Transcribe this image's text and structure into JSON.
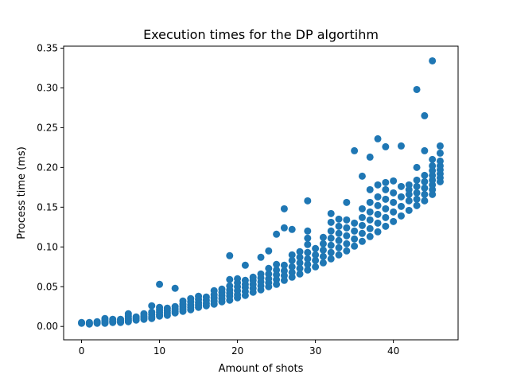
{
  "chart_data": {
    "type": "scatter",
    "title": "Execution times for the DP algortihm",
    "xlabel": "Amount of shots",
    "ylabel": "Process time (ms)",
    "xlim": [
      -2.3,
      48.3
    ],
    "ylim": [
      -0.0168,
      0.3525
    ],
    "xticks": [
      0,
      10,
      20,
      30,
      40
    ],
    "xtick_labels": [
      "0",
      "10",
      "20",
      "30",
      "40"
    ],
    "yticks": [
      0.0,
      0.05,
      0.1,
      0.15,
      0.2,
      0.25,
      0.3,
      0.35
    ],
    "ytick_labels": [
      "0.00",
      "0.05",
      "0.10",
      "0.15",
      "0.20",
      "0.25",
      "0.30",
      "0.35"
    ],
    "grid": false,
    "marker_color": "#1f77b4",
    "points": [
      [
        0,
        0.004
      ],
      [
        0,
        0.005
      ],
      [
        1,
        0.003
      ],
      [
        1,
        0.004
      ],
      [
        1,
        0.005
      ],
      [
        2,
        0.004
      ],
      [
        2,
        0.005
      ],
      [
        2,
        0.006
      ],
      [
        3,
        0.004
      ],
      [
        3,
        0.005
      ],
      [
        3,
        0.006
      ],
      [
        3,
        0.008
      ],
      [
        3,
        0.01
      ],
      [
        4,
        0.005
      ],
      [
        4,
        0.006
      ],
      [
        4,
        0.007
      ],
      [
        4,
        0.009
      ],
      [
        5,
        0.005
      ],
      [
        5,
        0.006
      ],
      [
        5,
        0.008
      ],
      [
        5,
        0.009
      ],
      [
        6,
        0.006
      ],
      [
        6,
        0.008
      ],
      [
        6,
        0.01
      ],
      [
        6,
        0.013
      ],
      [
        6,
        0.016
      ],
      [
        7,
        0.008
      ],
      [
        7,
        0.01
      ],
      [
        7,
        0.012
      ],
      [
        8,
        0.009
      ],
      [
        8,
        0.011
      ],
      [
        8,
        0.013
      ],
      [
        8,
        0.016
      ],
      [
        9,
        0.01
      ],
      [
        9,
        0.012
      ],
      [
        9,
        0.015
      ],
      [
        9,
        0.018
      ],
      [
        9,
        0.026
      ],
      [
        10,
        0.013
      ],
      [
        10,
        0.015
      ],
      [
        10,
        0.018
      ],
      [
        10,
        0.021
      ],
      [
        10,
        0.024
      ],
      [
        10,
        0.053
      ],
      [
        11,
        0.014
      ],
      [
        11,
        0.017
      ],
      [
        11,
        0.02
      ],
      [
        11,
        0.023
      ],
      [
        12,
        0.017
      ],
      [
        12,
        0.019
      ],
      [
        12,
        0.022
      ],
      [
        12,
        0.025
      ],
      [
        12,
        0.048
      ],
      [
        13,
        0.019
      ],
      [
        13,
        0.022
      ],
      [
        13,
        0.025
      ],
      [
        13,
        0.028
      ],
      [
        13,
        0.032
      ],
      [
        14,
        0.021
      ],
      [
        14,
        0.024
      ],
      [
        14,
        0.027
      ],
      [
        14,
        0.031
      ],
      [
        14,
        0.035
      ],
      [
        15,
        0.024
      ],
      [
        15,
        0.027
      ],
      [
        15,
        0.03
      ],
      [
        15,
        0.034
      ],
      [
        15,
        0.038
      ],
      [
        16,
        0.026
      ],
      [
        16,
        0.029
      ],
      [
        16,
        0.033
      ],
      [
        16,
        0.037
      ],
      [
        17,
        0.028
      ],
      [
        17,
        0.032
      ],
      [
        17,
        0.036
      ],
      [
        17,
        0.04
      ],
      [
        17,
        0.045
      ],
      [
        18,
        0.031
      ],
      [
        18,
        0.035
      ],
      [
        18,
        0.039
      ],
      [
        18,
        0.043
      ],
      [
        18,
        0.047
      ],
      [
        19,
        0.033
      ],
      [
        19,
        0.038
      ],
      [
        19,
        0.042
      ],
      [
        19,
        0.046
      ],
      [
        19,
        0.051
      ],
      [
        19,
        0.059
      ],
      [
        19,
        0.089
      ],
      [
        20,
        0.036
      ],
      [
        20,
        0.04
      ],
      [
        20,
        0.045
      ],
      [
        20,
        0.05
      ],
      [
        20,
        0.055
      ],
      [
        20,
        0.06
      ],
      [
        21,
        0.039
      ],
      [
        21,
        0.044
      ],
      [
        21,
        0.049
      ],
      [
        21,
        0.053
      ],
      [
        21,
        0.058
      ],
      [
        21,
        0.077
      ],
      [
        22,
        0.043
      ],
      [
        22,
        0.048
      ],
      [
        22,
        0.053
      ],
      [
        22,
        0.058
      ],
      [
        22,
        0.062
      ],
      [
        23,
        0.046
      ],
      [
        23,
        0.051
      ],
      [
        23,
        0.056
      ],
      [
        23,
        0.061
      ],
      [
        23,
        0.066
      ],
      [
        23,
        0.087
      ],
      [
        24,
        0.05
      ],
      [
        24,
        0.055
      ],
      [
        24,
        0.06
      ],
      [
        24,
        0.066
      ],
      [
        24,
        0.073
      ],
      [
        24,
        0.095
      ],
      [
        25,
        0.053
      ],
      [
        25,
        0.059
      ],
      [
        25,
        0.065
      ],
      [
        25,
        0.071
      ],
      [
        25,
        0.078
      ],
      [
        25,
        0.116
      ],
      [
        26,
        0.058
      ],
      [
        26,
        0.064
      ],
      [
        26,
        0.07
      ],
      [
        26,
        0.077
      ],
      [
        26,
        0.124
      ],
      [
        26,
        0.148
      ],
      [
        27,
        0.062
      ],
      [
        27,
        0.068
      ],
      [
        27,
        0.075
      ],
      [
        27,
        0.083
      ],
      [
        27,
        0.09
      ],
      [
        27,
        0.122
      ],
      [
        28,
        0.066
      ],
      [
        28,
        0.073
      ],
      [
        28,
        0.08
      ],
      [
        28,
        0.087
      ],
      [
        28,
        0.094
      ],
      [
        29,
        0.071
      ],
      [
        29,
        0.078
      ],
      [
        29,
        0.085
      ],
      [
        29,
        0.093
      ],
      [
        29,
        0.103
      ],
      [
        29,
        0.111
      ],
      [
        29,
        0.12
      ],
      [
        29,
        0.158
      ],
      [
        30,
        0.075
      ],
      [
        30,
        0.083
      ],
      [
        30,
        0.09
      ],
      [
        30,
        0.098
      ],
      [
        31,
        0.08
      ],
      [
        31,
        0.088
      ],
      [
        31,
        0.096
      ],
      [
        31,
        0.104
      ],
      [
        31,
        0.112
      ],
      [
        32,
        0.085
      ],
      [
        32,
        0.093
      ],
      [
        32,
        0.102
      ],
      [
        32,
        0.111
      ],
      [
        32,
        0.12
      ],
      [
        32,
        0.131
      ],
      [
        32,
        0.142
      ],
      [
        33,
        0.09
      ],
      [
        33,
        0.099
      ],
      [
        33,
        0.108
      ],
      [
        33,
        0.117
      ],
      [
        33,
        0.126
      ],
      [
        33,
        0.135
      ],
      [
        34,
        0.095
      ],
      [
        34,
        0.104
      ],
      [
        34,
        0.114
      ],
      [
        34,
        0.124
      ],
      [
        34,
        0.134
      ],
      [
        34,
        0.156
      ],
      [
        35,
        0.101
      ],
      [
        35,
        0.11
      ],
      [
        35,
        0.12
      ],
      [
        35,
        0.13
      ],
      [
        35,
        0.221
      ],
      [
        36,
        0.107
      ],
      [
        36,
        0.117
      ],
      [
        36,
        0.127
      ],
      [
        36,
        0.137
      ],
      [
        36,
        0.148
      ],
      [
        36,
        0.189
      ],
      [
        37,
        0.113
      ],
      [
        37,
        0.123
      ],
      [
        37,
        0.134
      ],
      [
        37,
        0.144
      ],
      [
        37,
        0.156
      ],
      [
        37,
        0.172
      ],
      [
        37,
        0.213
      ],
      [
        38,
        0.119
      ],
      [
        38,
        0.13
      ],
      [
        38,
        0.141
      ],
      [
        38,
        0.152
      ],
      [
        38,
        0.163
      ],
      [
        38,
        0.178
      ],
      [
        38,
        0.236
      ],
      [
        39,
        0.126
      ],
      [
        39,
        0.137
      ],
      [
        39,
        0.148
      ],
      [
        39,
        0.16
      ],
      [
        39,
        0.172
      ],
      [
        39,
        0.181
      ],
      [
        39,
        0.226
      ],
      [
        40,
        0.132
      ],
      [
        40,
        0.144
      ],
      [
        40,
        0.156
      ],
      [
        40,
        0.168
      ],
      [
        40,
        0.183
      ],
      [
        41,
        0.139
      ],
      [
        41,
        0.151
      ],
      [
        41,
        0.163
      ],
      [
        41,
        0.176
      ],
      [
        41,
        0.227
      ],
      [
        42,
        0.146
      ],
      [
        42,
        0.158
      ],
      [
        42,
        0.166
      ],
      [
        42,
        0.172
      ],
      [
        42,
        0.178
      ],
      [
        43,
        0.152
      ],
      [
        43,
        0.16
      ],
      [
        43,
        0.168
      ],
      [
        43,
        0.176
      ],
      [
        43,
        0.184
      ],
      [
        43,
        0.2
      ],
      [
        43,
        0.298
      ],
      [
        44,
        0.158
      ],
      [
        44,
        0.166
      ],
      [
        44,
        0.174
      ],
      [
        44,
        0.182
      ],
      [
        44,
        0.19
      ],
      [
        44,
        0.221
      ],
      [
        44,
        0.265
      ],
      [
        45,
        0.166
      ],
      [
        45,
        0.172
      ],
      [
        45,
        0.178
      ],
      [
        45,
        0.184
      ],
      [
        45,
        0.19
      ],
      [
        45,
        0.196
      ],
      [
        45,
        0.202
      ],
      [
        45,
        0.21
      ],
      [
        45,
        0.334
      ],
      [
        46,
        0.182
      ],
      [
        46,
        0.187
      ],
      [
        46,
        0.192
      ],
      [
        46,
        0.197
      ],
      [
        46,
        0.202
      ],
      [
        46,
        0.208
      ],
      [
        46,
        0.218
      ],
      [
        46,
        0.227
      ]
    ]
  }
}
